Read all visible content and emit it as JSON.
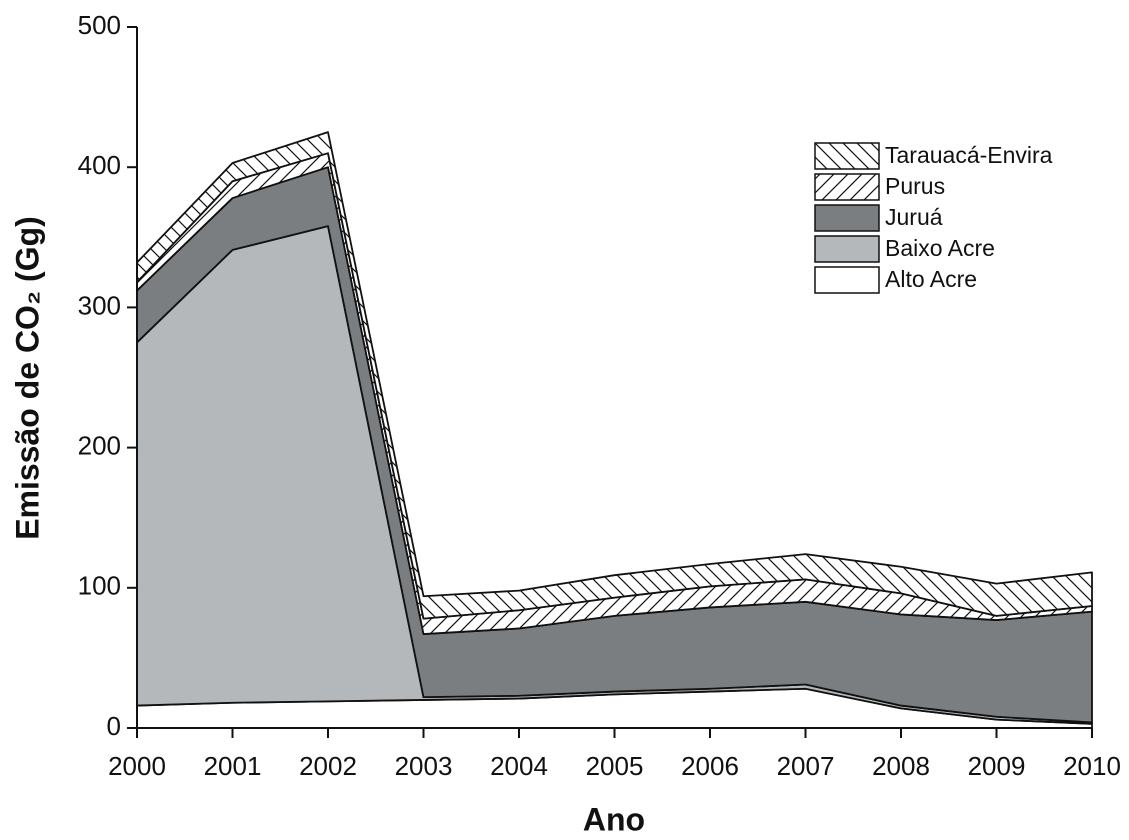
{
  "chart_data": {
    "type": "stacked_area",
    "x_label": "Ano",
    "y_label": "Emissão de CO₂ (Gg)",
    "x": [
      2000,
      2001,
      2002,
      2003,
      2004,
      2005,
      2006,
      2007,
      2008,
      2009,
      2010
    ],
    "series": [
      {
        "name": "Alto Acre",
        "color": "#ffffff",
        "values": [
          16,
          18,
          19,
          20,
          21,
          24,
          26,
          28,
          14,
          6,
          3
        ]
      },
      {
        "name": "Baixo Acre",
        "color": "#b4b8bb",
        "values": [
          259,
          323,
          339,
          2,
          2,
          2,
          2,
          3,
          2,
          2,
          1
        ]
      },
      {
        "name": "Juruá",
        "color": "#7a7e81",
        "values": [
          37,
          37,
          42,
          45,
          48,
          54,
          58,
          59,
          65,
          69,
          79
        ]
      },
      {
        "name": "Purus",
        "color": "#ffffff",
        "hatch": "/",
        "values": [
          6,
          12,
          10,
          11,
          13,
          13,
          15,
          16,
          15,
          3,
          4
        ]
      },
      {
        "name": "Tarauacá-Envira",
        "color": "#ffffff",
        "hatch": "\\",
        "values": [
          14,
          13,
          15,
          16,
          14,
          16,
          16,
          18,
          19,
          23,
          24
        ]
      }
    ],
    "xlim": [
      2000,
      2010
    ],
    "xticks": [
      2000,
      2001,
      2002,
      2003,
      2004,
      2005,
      2006,
      2007,
      2008,
      2009,
      2010
    ],
    "ylim": [
      0,
      500
    ],
    "yticks": [
      0,
      100,
      200,
      300,
      400,
      500
    ],
    "legend": "upper right"
  }
}
